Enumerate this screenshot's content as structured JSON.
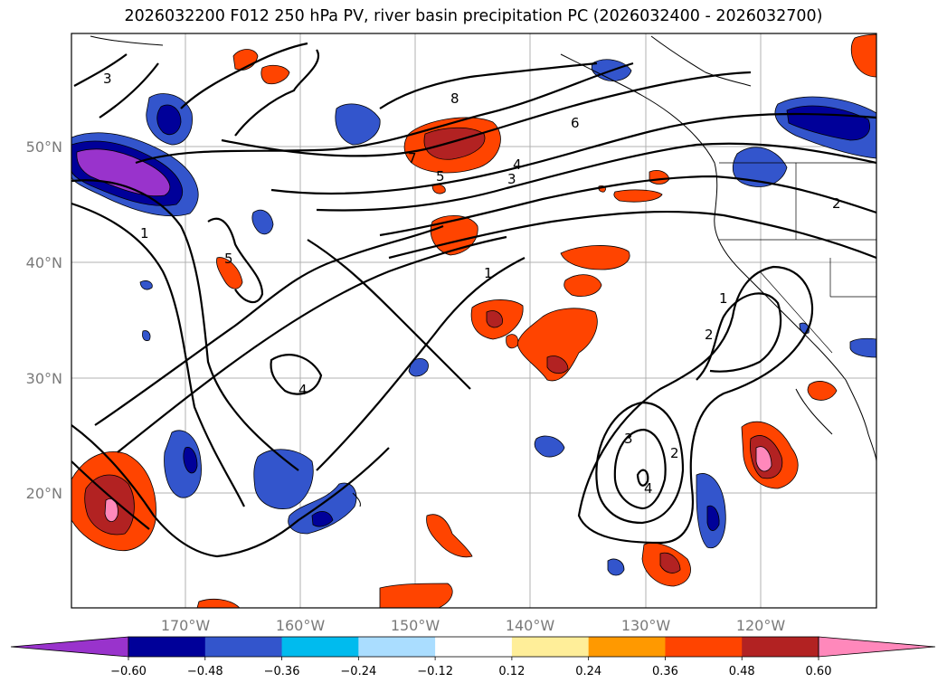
{
  "title": "2026032200 F012 250 hPa PV, river basin precipitation PC (2026032400 - 2026032700)",
  "lat_labels": [
    "50°N",
    "40°N",
    "30°N",
    "20°N"
  ],
  "lon_labels": [
    "170°W",
    "160°W",
    "150°W",
    "140°W",
    "130°W",
    "120°W"
  ],
  "colorbar": {
    "ticks": [
      "−0.60",
      "−0.48",
      "−0.36",
      "−0.24",
      "−0.12",
      "0.12",
      "0.24",
      "0.36",
      "0.48",
      "0.60"
    ],
    "colors": [
      "#9933cc",
      "#000099",
      "#3355cc",
      "#00bbee",
      "#aaddff",
      "#ffffff",
      "#ffee99",
      "#ff9900",
      "#ff4400",
      "#b22222",
      "#ff88bb"
    ]
  },
  "contour_labels": [
    "3",
    "8",
    "6",
    "7",
    "5",
    "4",
    "3",
    "1",
    "5",
    "1",
    "4",
    "1",
    "2",
    "3",
    "2",
    "4",
    "2"
  ]
}
